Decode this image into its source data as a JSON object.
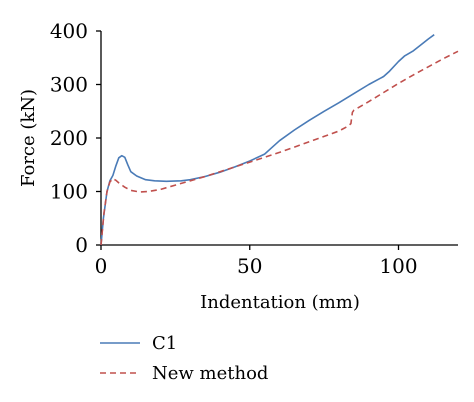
{
  "chart_data": {
    "type": "line",
    "title": "",
    "xlabel": "Indentation (mm)",
    "ylabel": "Force (kN)",
    "xlim": [
      0,
      120
    ],
    "ylim": [
      0,
      400
    ],
    "xticks": [
      0,
      50,
      100
    ],
    "yticks": [
      0,
      100,
      200,
      300,
      400
    ],
    "grid": false,
    "legend_position": "bottom-left",
    "series": [
      {
        "name": "C1",
        "color": "#4a7bb7",
        "style": "solid",
        "x": [
          0,
          0.8,
          2,
          3,
          4,
          5,
          6,
          7,
          8,
          9,
          10,
          12,
          15,
          18,
          22,
          27,
          30,
          35,
          40,
          45,
          50,
          55,
          57,
          60,
          65,
          70,
          75,
          80,
          85,
          90,
          95,
          97,
          100,
          102,
          105,
          108,
          110,
          112
        ],
        "y": [
          0,
          50,
          100,
          120,
          130,
          148,
          163,
          167,
          164,
          150,
          137,
          129,
          122,
          120,
          119,
          120,
          122,
          128,
          136,
          146,
          157,
          170,
          180,
          195,
          215,
          233,
          250,
          266,
          283,
          300,
          315,
          325,
          343,
          353,
          363,
          376,
          385,
          393
        ]
      },
      {
        "name": "New method",
        "color": "#c0504d",
        "style": "dashed",
        "x": [
          0,
          1,
          2,
          3,
          4,
          5,
          6,
          8,
          10,
          13,
          16,
          20,
          25,
          30,
          35,
          40,
          45,
          50,
          55,
          60,
          65,
          70,
          75,
          80,
          83,
          84,
          84.5,
          85,
          90,
          95,
          100,
          105,
          110,
          115,
          120
        ],
        "y": [
          0,
          60,
          100,
          118,
          124,
          121,
          116,
          108,
          102,
          99,
          100,
          104,
          112,
          120,
          128,
          137,
          146,
          155,
          164,
          173,
          183,
          193,
          203,
          213,
          222,
          227,
          248,
          252,
          268,
          285,
          302,
          318,
          333,
          348,
          362
        ]
      }
    ]
  }
}
